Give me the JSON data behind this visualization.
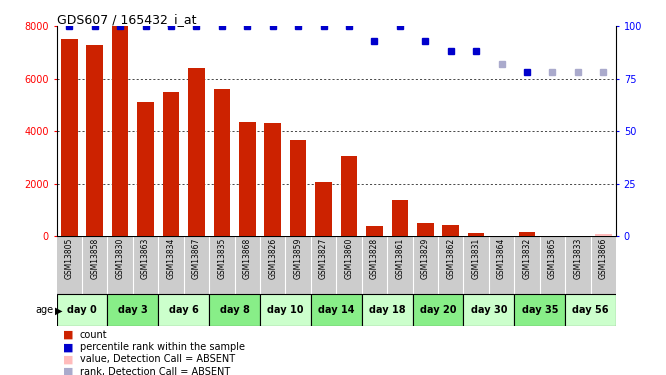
{
  "title": "GDS607 / 165432_i_at",
  "samples": [
    "GSM13805",
    "GSM13858",
    "GSM13830",
    "GSM13863",
    "GSM13834",
    "GSM13867",
    "GSM13835",
    "GSM13868",
    "GSM13826",
    "GSM13859",
    "GSM13827",
    "GSM13860",
    "GSM13828",
    "GSM13861",
    "GSM13829",
    "GSM13862",
    "GSM13831",
    "GSM13864",
    "GSM13832",
    "GSM13865",
    "GSM13833",
    "GSM13866"
  ],
  "count_values": [
    7500,
    7300,
    8000,
    5100,
    5500,
    6400,
    5600,
    4350,
    4300,
    3650,
    2050,
    3050,
    400,
    1400,
    520,
    420,
    120,
    0,
    150,
    0,
    0,
    80
  ],
  "percentile_values": [
    100,
    100,
    100,
    100,
    100,
    100,
    100,
    100,
    100,
    100,
    100,
    100,
    93,
    100,
    93,
    88,
    88,
    82,
    78,
    78,
    78,
    78
  ],
  "absent_flags": [
    false,
    false,
    false,
    false,
    false,
    false,
    false,
    false,
    false,
    false,
    false,
    false,
    false,
    false,
    false,
    false,
    false,
    true,
    false,
    true,
    true,
    true
  ],
  "day_groups": {
    "day 0": [
      "GSM13805",
      "GSM13858"
    ],
    "day 3": [
      "GSM13830",
      "GSM13863"
    ],
    "day 6": [
      "GSM13834",
      "GSM13867"
    ],
    "day 8": [
      "GSM13835",
      "GSM13868"
    ],
    "day 10": [
      "GSM13826",
      "GSM13859"
    ],
    "day 14": [
      "GSM13827",
      "GSM13860"
    ],
    "day 18": [
      "GSM13828",
      "GSM13861"
    ],
    "day 20": [
      "GSM13829",
      "GSM13862"
    ],
    "day 30": [
      "GSM13831",
      "GSM13864"
    ],
    "day 35": [
      "GSM13832",
      "GSM13865"
    ],
    "day 56": [
      "GSM13833",
      "GSM13866"
    ]
  },
  "ylim_left": [
    0,
    8000
  ],
  "ylim_right": [
    0,
    100
  ],
  "yticks_left": [
    0,
    2000,
    4000,
    6000,
    8000
  ],
  "yticks_right": [
    0,
    25,
    50,
    75,
    100
  ],
  "bar_color": "#cc2200",
  "dot_color_present": "#0000cc",
  "dot_color_absent": "#aaaacc",
  "bar_color_absent": "#ffbbbb",
  "background_plot": "#ffffff",
  "background_sample": "#cccccc",
  "background_day_even": "#ccffcc",
  "background_day_odd": "#88ee88"
}
